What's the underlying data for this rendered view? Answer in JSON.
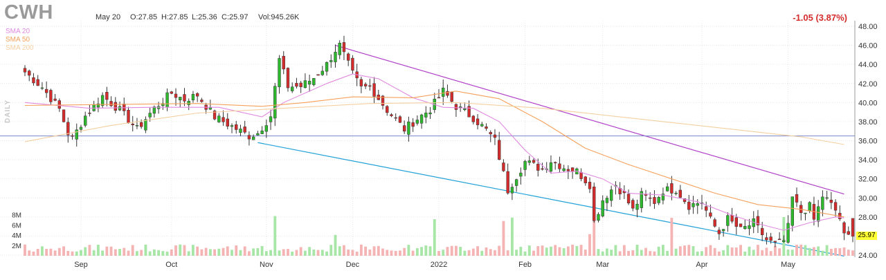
{
  "header": {
    "ticker": "CWH",
    "date": "May 20",
    "open": "O:27.85",
    "high": "H:27.85",
    "low": "L:25.36",
    "close": "C:25.97",
    "volume": "Vol:945.26K",
    "change": "-1.05 (3.87%)"
  },
  "indicators": [
    {
      "label": "SMA 20",
      "color": "#e08ae0"
    },
    {
      "label": "SMA 50",
      "color": "#f5a05a"
    },
    {
      "label": "SMA 200",
      "color": "#f5cfa0"
    }
  ],
  "period_label": "DAILY",
  "last_price_tag": "25.97",
  "colors": {
    "up": "#2eb82e",
    "down": "#d42c2c",
    "up_vol": "#a8e6a8",
    "down_vol": "#f5b4b4",
    "grid": "#e6e6e6",
    "resistance": "#b040c8",
    "support": "#1ea0d8",
    "horizontal": "#7a84c8"
  },
  "chart_data": {
    "type": "candlestick",
    "title": "CWH",
    "y_axis": {
      "min": 24,
      "max": 48,
      "ticks": [
        "48.00",
        "46.00",
        "44.00",
        "42.00",
        "40.00",
        "38.00",
        "36.00",
        "34.00",
        "32.00",
        "30.00",
        "28.00",
        "26.00",
        "24.00"
      ],
      "position": "right"
    },
    "volume_axis": {
      "ticks": [
        "8M",
        "6M",
        "4M",
        "2M"
      ]
    },
    "x_ticks": [
      {
        "label": "Sep",
        "index": 13
      },
      {
        "label": "Oct",
        "index": 34
      },
      {
        "label": "Nov",
        "index": 56
      },
      {
        "label": "Dec",
        "index": 76
      },
      {
        "label": "2022",
        "index": 96
      },
      {
        "label": "Feb",
        "index": 116
      },
      {
        "label": "Mar",
        "index": 134
      },
      {
        "label": "Apr",
        "index": 157
      },
      {
        "label": "May",
        "index": 177
      }
    ],
    "n_bars": 193,
    "anchors": [
      [
        0,
        43.2
      ],
      [
        4,
        41.6
      ],
      [
        8,
        39.3
      ],
      [
        10,
        36.8
      ],
      [
        11,
        36.2
      ],
      [
        14,
        38.6
      ],
      [
        18,
        40.7
      ],
      [
        22,
        39.2
      ],
      [
        26,
        37.2
      ],
      [
        30,
        39.4
      ],
      [
        34,
        41.0
      ],
      [
        37,
        40.3
      ],
      [
        40,
        40.8
      ],
      [
        44,
        38.5
      ],
      [
        48,
        37.5
      ],
      [
        52,
        36.5
      ],
      [
        54,
        36.8
      ],
      [
        57,
        38.6
      ],
      [
        59,
        44.5
      ],
      [
        61,
        41.7
      ],
      [
        64,
        41.7
      ],
      [
        67,
        42.6
      ],
      [
        70,
        44.0
      ],
      [
        72,
        45.5
      ],
      [
        73,
        46.0
      ],
      [
        76,
        43.0
      ],
      [
        78,
        41.5
      ],
      [
        80,
        41.7
      ],
      [
        84,
        39.2
      ],
      [
        88,
        37.2
      ],
      [
        91,
        38.3
      ],
      [
        94,
        39.3
      ],
      [
        97,
        41.2
      ],
      [
        100,
        39.6
      ],
      [
        104,
        38.4
      ],
      [
        107,
        37.1
      ],
      [
        109,
        36.0
      ],
      [
        112,
        30.8
      ],
      [
        116,
        33.8
      ],
      [
        120,
        33.0
      ],
      [
        122,
        33.9
      ],
      [
        125,
        33.2
      ],
      [
        128,
        32.8
      ],
      [
        131,
        31.4
      ],
      [
        132,
        27.5
      ],
      [
        134,
        29.8
      ],
      [
        137,
        31.4
      ],
      [
        139,
        30.3
      ],
      [
        141,
        28.7
      ],
      [
        143,
        30.3
      ],
      [
        146,
        29.6
      ],
      [
        148,
        30.8
      ],
      [
        151,
        30.9
      ],
      [
        154,
        29.2
      ],
      [
        157,
        29.6
      ],
      [
        159,
        27.7
      ],
      [
        161,
        26.3
      ],
      [
        163,
        27.8
      ],
      [
        166,
        26.6
      ],
      [
        169,
        27.4
      ],
      [
        172,
        25.6
      ],
      [
        174,
        25.1
      ],
      [
        176,
        25.5
      ],
      [
        177,
        26.9
      ],
      [
        178,
        30.0
      ],
      [
        180,
        28.5
      ],
      [
        182,
        29.1
      ],
      [
        183,
        27.7
      ],
      [
        185,
        30.2
      ],
      [
        186,
        29.8
      ],
      [
        188,
        28.7
      ],
      [
        189,
        27.85
      ],
      [
        190,
        25.97
      ]
    ],
    "series": [
      {
        "name": "SMA 20",
        "points": [
          [
            0,
            40.0
          ],
          [
            15,
            39.4
          ],
          [
            30,
            39.5
          ],
          [
            45,
            39.5
          ],
          [
            55,
            38.5
          ],
          [
            60,
            40.0
          ],
          [
            70,
            42.0
          ],
          [
            76,
            43.0
          ],
          [
            82,
            42.5
          ],
          [
            90,
            40.5
          ],
          [
            97,
            39.5
          ],
          [
            104,
            39.4
          ],
          [
            110,
            38.0
          ],
          [
            116,
            35.0
          ],
          [
            122,
            32.6
          ],
          [
            128,
            32.8
          ],
          [
            134,
            32.0
          ],
          [
            140,
            30.5
          ],
          [
            148,
            30.3
          ],
          [
            156,
            29.6
          ],
          [
            164,
            28.2
          ],
          [
            170,
            27.3
          ],
          [
            176,
            26.6
          ],
          [
            182,
            27.4
          ],
          [
            188,
            28.0
          ],
          [
            190,
            27.9
          ]
        ]
      },
      {
        "name": "SMA 50",
        "points": [
          [
            0,
            39.7
          ],
          [
            20,
            39.8
          ],
          [
            40,
            39.9
          ],
          [
            55,
            39.6
          ],
          [
            65,
            40.0
          ],
          [
            76,
            40.6
          ],
          [
            90,
            40.5
          ],
          [
            100,
            41.2
          ],
          [
            110,
            40.4
          ],
          [
            120,
            38.0
          ],
          [
            130,
            35.2
          ],
          [
            140,
            33.5
          ],
          [
            150,
            32.0
          ],
          [
            160,
            30.5
          ],
          [
            170,
            29.3
          ],
          [
            180,
            28.8
          ],
          [
            190,
            28.0
          ]
        ]
      },
      {
        "name": "SMA 200",
        "points": [
          [
            0,
            35.9
          ],
          [
            20,
            37.6
          ],
          [
            40,
            38.9
          ],
          [
            60,
            39.4
          ],
          [
            80,
            39.9
          ],
          [
            100,
            40.0
          ],
          [
            120,
            39.4
          ],
          [
            140,
            38.4
          ],
          [
            160,
            37.4
          ],
          [
            180,
            36.4
          ],
          [
            190,
            35.6
          ]
        ]
      }
    ],
    "trendlines": [
      {
        "kind": "resistance",
        "from": [
          72,
          46.0
        ],
        "to": [
          190,
          30.4
        ]
      },
      {
        "kind": "support",
        "from": [
          54,
          35.8
        ],
        "to": [
          190,
          23.9
        ]
      },
      {
        "kind": "horizontal",
        "y": 36.5
      }
    ]
  }
}
